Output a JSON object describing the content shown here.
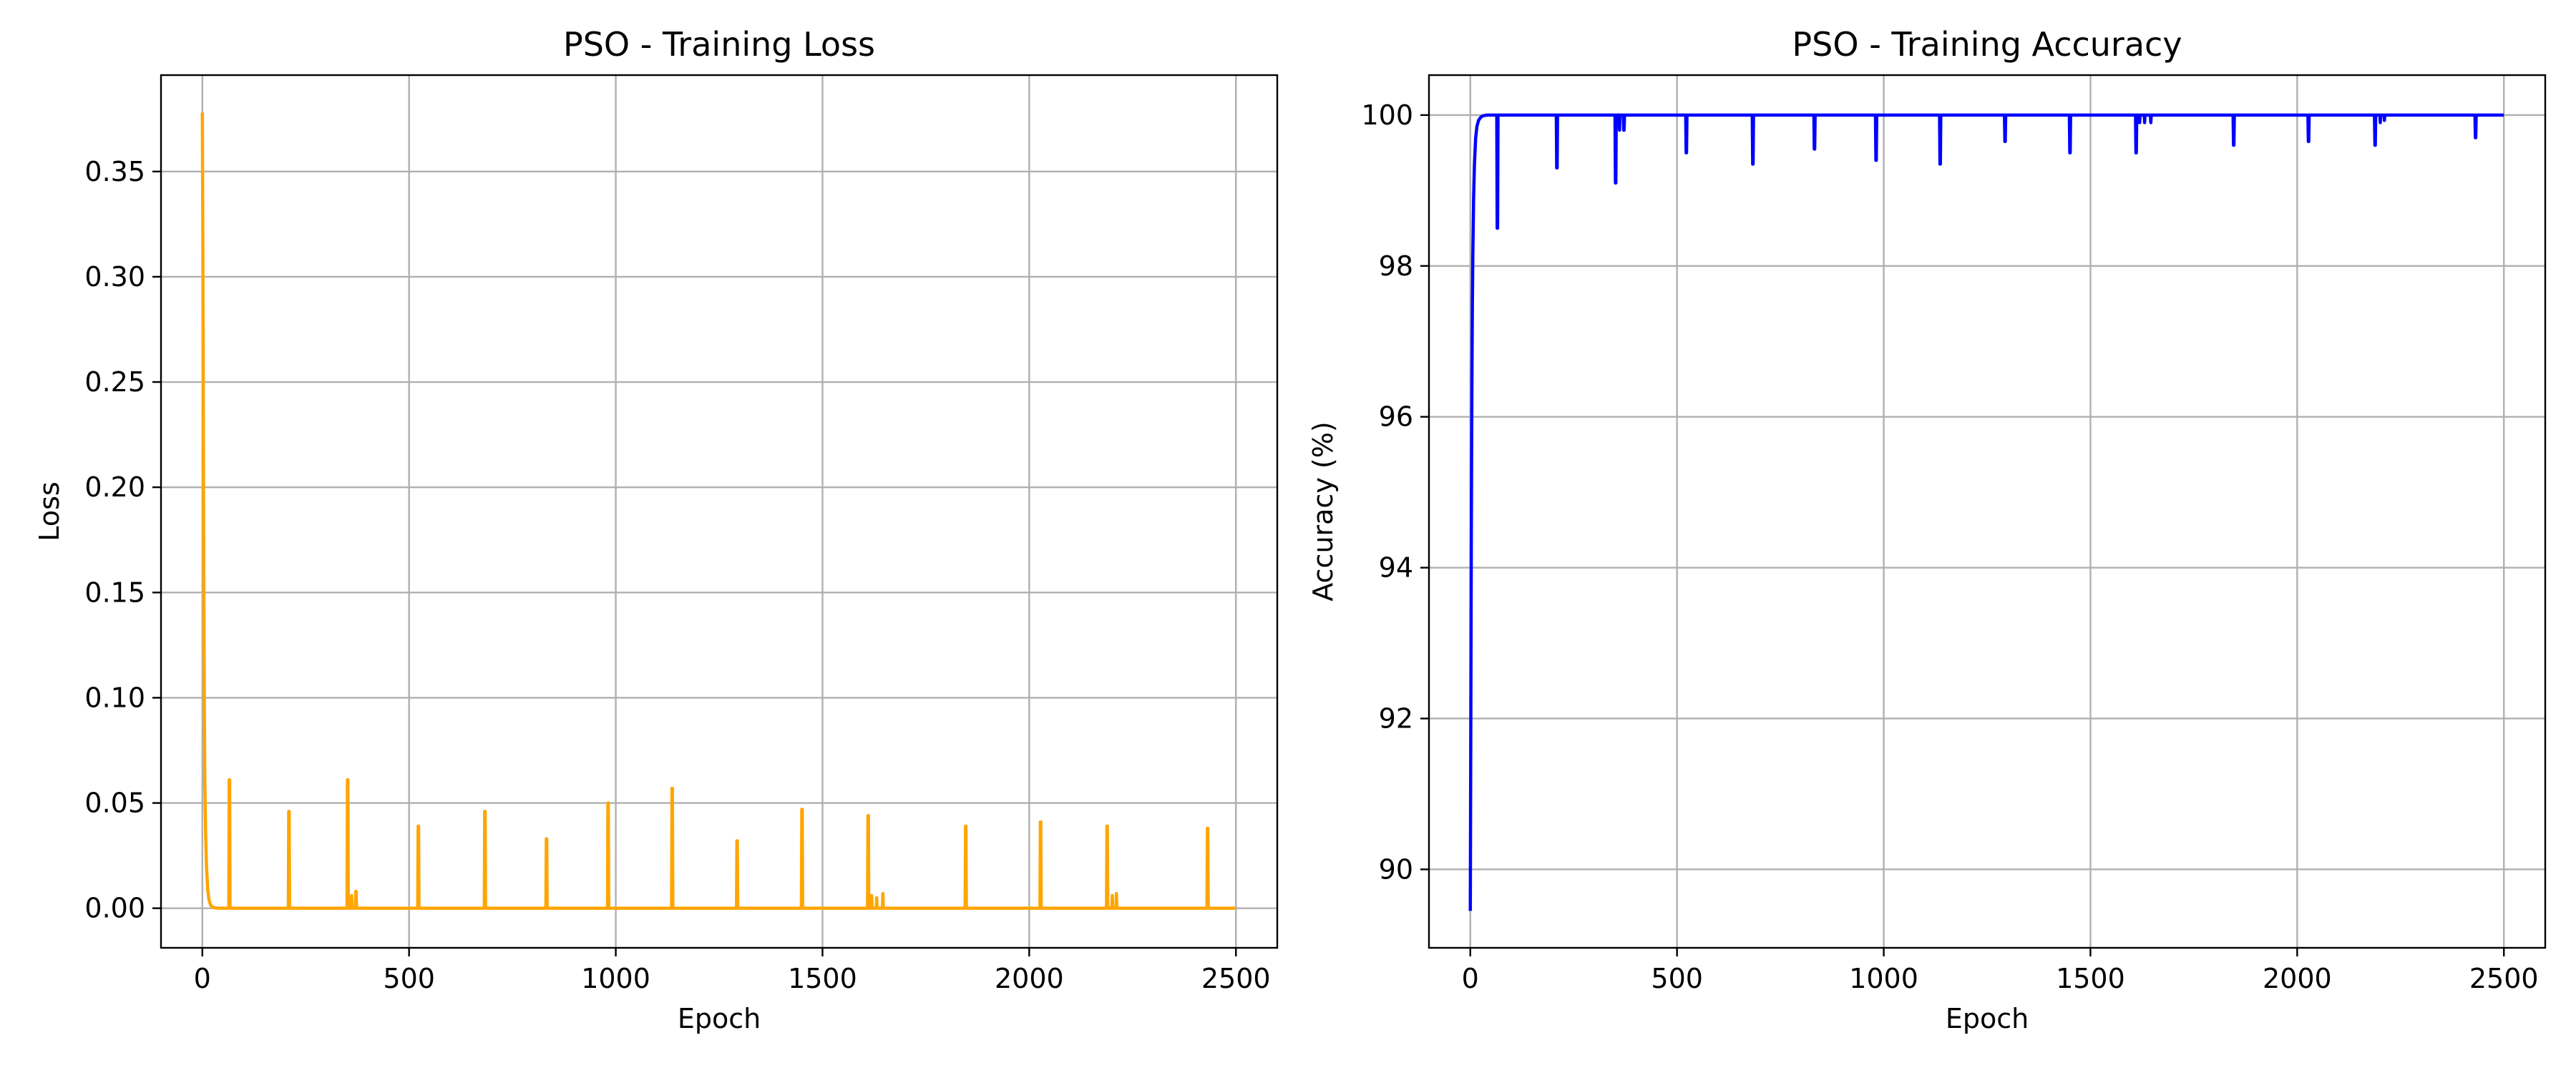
{
  "chart_data": [
    {
      "type": "line",
      "title": "PSO - Training Loss",
      "xlabel": "Epoch",
      "ylabel": "Loss",
      "xlim": [
        -100,
        2600
      ],
      "ylim": [
        -0.0188,
        0.3958
      ],
      "xticks": [
        0,
        500,
        1000,
        1500,
        2000,
        2500
      ],
      "xtick_labels": [
        "0",
        "500",
        "1000",
        "1500",
        "2000",
        "2500"
      ],
      "yticks": [
        0.0,
        0.05,
        0.1,
        0.15,
        0.2,
        0.25,
        0.3,
        0.35
      ],
      "ytick_labels": [
        "0.00",
        "0.05",
        "0.10",
        "0.15",
        "0.20",
        "0.25",
        "0.30",
        "0.35"
      ],
      "grid": true,
      "color": "#ffa500",
      "series": [
        {
          "x": [
            0,
            1,
            2,
            3,
            4,
            5,
            6,
            8,
            10,
            13,
            16,
            20,
            25,
            30,
            40,
            64,
            65,
            66,
            67,
            208,
            209,
            210,
            211,
            350,
            351,
            352,
            353,
            360,
            361,
            362,
            370,
            371,
            372,
            373,
            380,
            521,
            522,
            523,
            524,
            682,
            683,
            684,
            685,
            831,
            832,
            833,
            834,
            980,
            981,
            982,
            983,
            1135,
            1136,
            1137,
            1138,
            1292,
            1293,
            1294,
            1295,
            1449,
            1450,
            1451,
            1452,
            1609,
            1610,
            1611,
            1612,
            1618,
            1619,
            1620,
            1630,
            1631,
            1632,
            1645,
            1646,
            1647,
            1655,
            1845,
            1846,
            1847,
            1848,
            2026,
            2027,
            2028,
            2029,
            2187,
            2188,
            2189,
            2190,
            2200,
            2201,
            2202,
            2210,
            2211,
            2212,
            2220,
            2430,
            2431,
            2432,
            2433,
            2500
          ],
          "y": [
            0.378,
            0.33,
            0.26,
            0.19,
            0.13,
            0.09,
            0.06,
            0.035,
            0.02,
            0.009,
            0.004,
            0.0015,
            0.0005,
            0.0002,
            0.0,
            0.0,
            0.061,
            0.061,
            0.0,
            0.0,
            0.046,
            0.046,
            0.0,
            0.0,
            0.061,
            0.061,
            0.0,
            0.0,
            0.006,
            0.0,
            0.0,
            0.008,
            0.008,
            0.0,
            0.0,
            0.0,
            0.039,
            0.039,
            0.0,
            0.0,
            0.046,
            0.046,
            0.0,
            0.0,
            0.033,
            0.033,
            0.0,
            0.0,
            0.05,
            0.05,
            0.0,
            0.0,
            0.057,
            0.057,
            0.0,
            0.0,
            0.032,
            0.032,
            0.0,
            0.0,
            0.047,
            0.047,
            0.0,
            0.0,
            0.044,
            0.044,
            0.0,
            0.0,
            0.006,
            0.0,
            0.0,
            0.005,
            0.0,
            0.0,
            0.007,
            0.0,
            0.0,
            0.0,
            0.039,
            0.039,
            0.0,
            0.0,
            0.041,
            0.041,
            0.0,
            0.0,
            0.039,
            0.039,
            0.0,
            0.0,
            0.006,
            0.0,
            0.0,
            0.007,
            0.0,
            0.0,
            0.0,
            0.038,
            0.038,
            0.0,
            0.0
          ]
        }
      ]
    },
    {
      "type": "line",
      "title": "PSO - Training Accuracy",
      "xlabel": "Epoch",
      "ylabel": "Accuracy (%)",
      "xlim": [
        -100,
        2600
      ],
      "ylim": [
        88.96,
        100.53
      ],
      "xticks": [
        0,
        500,
        1000,
        1500,
        2000,
        2500
      ],
      "xtick_labels": [
        "0",
        "500",
        "1000",
        "1500",
        "2000",
        "2500"
      ],
      "yticks": [
        90,
        92,
        94,
        96,
        98,
        100
      ],
      "ytick_labels": [
        "90",
        "92",
        "94",
        "96",
        "98",
        "100"
      ],
      "grid": true,
      "color": "#0000ff",
      "series": [
        {
          "x": [
            0,
            1,
            2,
            3,
            4,
            5,
            6,
            8,
            10,
            13,
            16,
            20,
            25,
            30,
            40,
            64,
            65,
            66,
            67,
            208,
            209,
            210,
            211,
            350,
            351,
            352,
            353,
            360,
            361,
            362,
            370,
            371,
            372,
            373,
            380,
            521,
            522,
            523,
            524,
            682,
            683,
            684,
            685,
            831,
            832,
            833,
            834,
            980,
            981,
            982,
            983,
            1135,
            1136,
            1137,
            1138,
            1292,
            1293,
            1294,
            1295,
            1449,
            1450,
            1451,
            1452,
            1609,
            1610,
            1611,
            1612,
            1618,
            1619,
            1620,
            1630,
            1631,
            1632,
            1645,
            1646,
            1647,
            1655,
            1845,
            1846,
            1847,
            1848,
            2026,
            2027,
            2028,
            2029,
            2187,
            2188,
            2189,
            2190,
            2200,
            2201,
            2202,
            2210,
            2211,
            2212,
            2220,
            2430,
            2431,
            2432,
            2433,
            2500
          ],
          "y": [
            89.45,
            91.5,
            93.6,
            95.3,
            96.6,
            97.5,
            98.1,
            98.9,
            99.35,
            99.7,
            99.85,
            99.93,
            99.97,
            99.99,
            100.0,
            100.0,
            98.5,
            98.5,
            100.0,
            100.0,
            99.3,
            99.3,
            100.0,
            100.0,
            99.1,
            99.1,
            100.0,
            100.0,
            99.8,
            100.0,
            100.0,
            99.8,
            99.8,
            100.0,
            100.0,
            100.0,
            99.5,
            99.5,
            100.0,
            100.0,
            99.35,
            99.35,
            100.0,
            100.0,
            99.55,
            99.55,
            100.0,
            100.0,
            99.4,
            99.4,
            100.0,
            100.0,
            99.35,
            99.35,
            100.0,
            100.0,
            99.65,
            99.65,
            100.0,
            100.0,
            99.5,
            99.5,
            100.0,
            100.0,
            99.5,
            99.5,
            100.0,
            100.0,
            99.9,
            100.0,
            100.0,
            99.9,
            100.0,
            100.0,
            99.9,
            100.0,
            100.0,
            100.0,
            99.6,
            99.6,
            100.0,
            100.0,
            99.65,
            99.65,
            100.0,
            100.0,
            99.6,
            99.6,
            100.0,
            100.0,
            99.9,
            100.0,
            100.0,
            99.93,
            100.0,
            100.0,
            100.0,
            99.7,
            99.7,
            100.0,
            100.0
          ]
        }
      ]
    }
  ]
}
